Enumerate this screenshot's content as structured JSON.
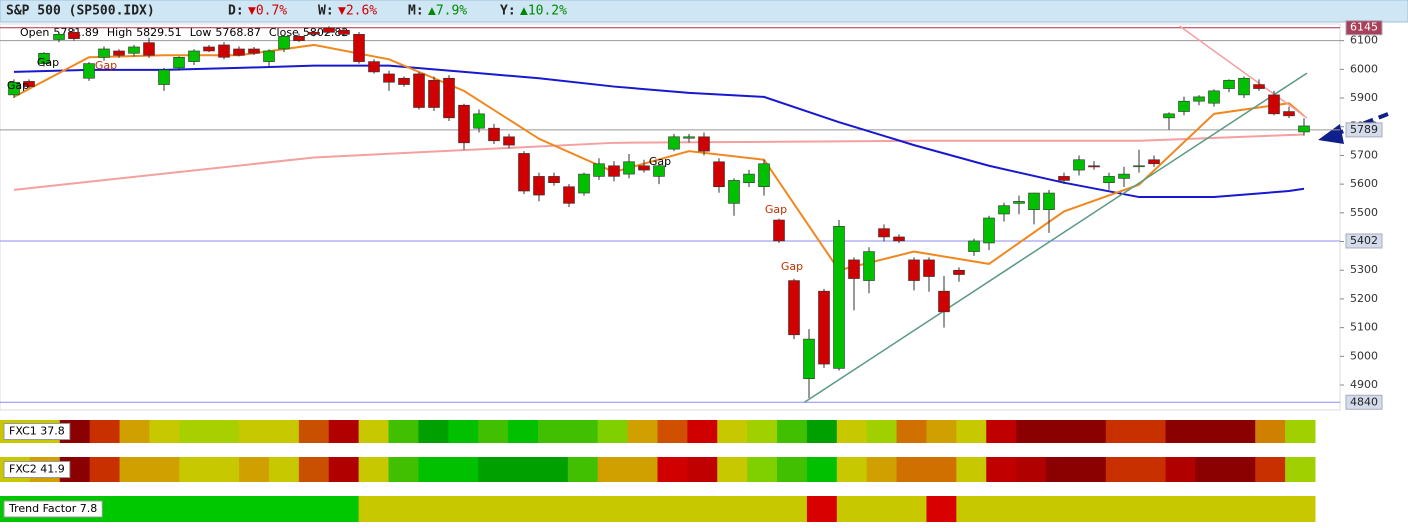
{
  "header": {
    "title": "S&P 500 (SP500.IDX)",
    "changes": [
      {
        "label": "D:",
        "value": "▼0.7%",
        "color": "#d00000"
      },
      {
        "label": "W:",
        "value": "▼2.6%",
        "color": "#d00000"
      },
      {
        "label": "M:",
        "value": "▲7.9%",
        "color": "#008800"
      },
      {
        "label": "Y:",
        "value": "▲10.2%",
        "color": "#008800"
      }
    ]
  },
  "chart_data": {
    "type": "candlestick",
    "ohlc_labels": [
      "Open",
      "High",
      "Low",
      "Close"
    ],
    "up_color": "#00c000",
    "down_color": "#d00000",
    "open": [
      5911,
      5958,
      6020,
      6104,
      6129,
      5969,
      6042,
      6064,
      6056,
      6093,
      5947,
      6005,
      6027,
      6078,
      6085,
      6071,
      6071,
      6027,
      6071,
      6115,
      6129,
      6144,
      6136,
      6122,
      6027,
      5984,
      5969,
      5984,
      5962,
      5969,
      5875,
      5795,
      5795,
      5765,
      5707,
      5627,
      5627,
      5591,
      5569,
      5627,
      5664,
      5635,
      5664,
      5627,
      5722,
      5760,
      5765,
      5678,
      5533,
      5605,
      5591,
      5475,
      5264,
      4922,
      5227,
      4958,
      5336,
      5264,
      5445,
      5416,
      5336,
      5336,
      5227,
      5300,
      5365,
      5395,
      5496,
      5533,
      5511,
      5511,
      5627,
      5649,
      5664,
      5605,
      5620,
      5661,
      5685,
      5831,
      5853,
      5889,
      5882,
      5933,
      5911,
      5947,
      5911,
      5853,
      5781.89
    ],
    "high": [
      5965,
      5965,
      6060,
      6130,
      6140,
      6025,
      6080,
      6070,
      6085,
      6110,
      6005,
      6045,
      6070,
      6085,
      6095,
      6080,
      6078,
      6070,
      6120,
      6125,
      6135,
      6150,
      6145,
      6130,
      6035,
      5995,
      5975,
      5990,
      5975,
      5980,
      5880,
      5860,
      5810,
      5775,
      5715,
      5640,
      5640,
      5600,
      5640,
      5690,
      5680,
      5705,
      5685,
      5670,
      5775,
      5775,
      5780,
      5690,
      5620,
      5650,
      5685,
      5480,
      5270,
      5095,
      5235,
      5475,
      5345,
      5380,
      5460,
      5425,
      5345,
      5345,
      5280,
      5310,
      5410,
      5490,
      5535,
      5560,
      5570,
      5580,
      5640,
      5700,
      5680,
      5640,
      5660,
      5720,
      5700,
      5850,
      5905,
      5910,
      5930,
      5965,
      5975,
      5965,
      5925,
      5870,
      5829.51
    ],
    "low": [
      5900,
      5935,
      6010,
      6095,
      6100,
      5960,
      6030,
      6040,
      6045,
      6040,
      5925,
      5995,
      6015,
      6060,
      6035,
      6045,
      6050,
      6010,
      6060,
      6095,
      6115,
      6125,
      6115,
      6020,
      5985,
      5925,
      5940,
      5860,
      5855,
      5820,
      5720,
      5780,
      5740,
      5725,
      5565,
      5540,
      5595,
      5520,
      5560,
      5615,
      5610,
      5620,
      5640,
      5600,
      5715,
      5745,
      5700,
      5570,
      5490,
      5590,
      5560,
      5395,
      5060,
      4855,
      4960,
      4950,
      5160,
      5220,
      5400,
      5395,
      5230,
      5225,
      5100,
      5260,
      5350,
      5370,
      5470,
      5495,
      5460,
      5430,
      5600,
      5630,
      5650,
      5580,
      5590,
      5640,
      5660,
      5790,
      5840,
      5875,
      5870,
      5920,
      5900,
      5925,
      5840,
      5830,
      5768.87
    ],
    "close": [
      5955,
      5940,
      6056,
      6122,
      6107,
      6020,
      6071,
      6049,
      6078,
      6049,
      5998,
      6042,
      6064,
      6064,
      6042,
      6049,
      6056,
      6064,
      6115,
      6100,
      6122,
      6129,
      6122,
      6027,
      5991,
      5955,
      5947,
      5867,
      5867,
      5831,
      5744,
      5845,
      5751,
      5736,
      5576,
      5562,
      5605,
      5533,
      5635,
      5671,
      5627,
      5678,
      5649,
      5664,
      5765,
      5765,
      5715,
      5591,
      5613,
      5635,
      5671,
      5402,
      5075,
      5060,
      4973,
      5453,
      5271,
      5365,
      5416,
      5402,
      5264,
      5278,
      5155,
      5285,
      5402,
      5482,
      5525,
      5540,
      5569,
      5569,
      5613,
      5685,
      5660,
      5627,
      5635,
      5664,
      5671,
      5845,
      5889,
      5904,
      5925,
      5962,
      5969,
      5933,
      5845,
      5838,
      5802.82
    ],
    "ylim": [
      4813,
      6158
    ],
    "yticks": [
      4900,
      5000,
      5100,
      5200,
      5300,
      5400,
      5500,
      5600,
      5700,
      5800,
      5900,
      6000,
      6100
    ],
    "lines": [
      {
        "color": "#f4a0a0",
        "x": [
          0,
          20,
          40,
          60,
          75,
          86
        ],
        "values": [
          5580,
          5693,
          5744,
          5751,
          5751,
          5773
        ]
      },
      {
        "color": "#1818d0",
        "x": [
          0,
          5,
          10,
          15,
          20,
          25,
          30,
          35,
          40,
          45,
          50,
          55,
          60,
          65,
          70,
          75,
          80,
          85,
          86
        ],
        "values": [
          5991,
          5998,
          5998,
          6005,
          6013,
          6013,
          5991,
          5969,
          5940,
          5918,
          5904,
          5816,
          5736,
          5664,
          5605,
          5555,
          5555,
          5576,
          5584
        ]
      },
      {
        "color": "#f08820",
        "x": [
          0,
          5,
          10,
          15,
          20,
          25,
          30,
          35,
          40,
          45,
          50,
          55,
          60,
          65,
          70,
          75,
          80,
          85,
          86
        ],
        "values": [
          5904,
          6042,
          6049,
          6049,
          6085,
          6035,
          5925,
          5758,
          5642,
          5715,
          5685,
          5300,
          5365,
          5322,
          5505,
          5598,
          5845,
          5882,
          5838
        ]
      }
    ],
    "trendlines": [
      {
        "color": "#5a9a80",
        "x": [
          52.7,
          86.2
        ],
        "values": [
          4840,
          5987
        ]
      },
      {
        "color": "#f4a0a0",
        "x": [
          77.7,
          86.2
        ],
        "values": [
          6151,
          5831
        ]
      }
    ],
    "levels": [
      {
        "value": 6145,
        "color": "#b03050",
        "box": "#a8405a",
        "text_color": "#ffffff",
        "labeled": true
      },
      {
        "value": 6100,
        "color": "#999999",
        "box": "#ffffff",
        "text_color": "#333333",
        "labeled": false
      },
      {
        "value": 5789,
        "color": "#999999",
        "box": "#d4dcec",
        "text_color": "#222222",
        "labeled": true
      },
      {
        "value": 5402,
        "color": "#8c8cf0",
        "box": "#d4dcec",
        "text_color": "#222222",
        "labeled": true
      },
      {
        "value": 4840,
        "color": "#8c8cf0",
        "box": "#d4dcec",
        "text_color": "#222222",
        "labeled": true
      }
    ],
    "annotations": [
      {
        "text": "Gap",
        "color": "#000000"
      },
      {
        "text": "Gap",
        "color": "#000000"
      },
      {
        "text": "Gap",
        "color": "#c03000"
      },
      {
        "text": "Gap",
        "color": "#000000"
      },
      {
        "text": "Gap",
        "color": "#c03000"
      },
      {
        "text": "Gap",
        "color": "#c03000"
      }
    ]
  },
  "indicators": [
    {
      "label": "FXC1 37.8",
      "colors": [
        "#c8c800",
        "#c8c800",
        "#8b0000",
        "#c83000",
        "#d0a000",
        "#c8c800",
        "#a8d000",
        "#a8d000",
        "#c8c800",
        "#c8c800",
        "#c85000",
        "#b00000",
        "#c8c800",
        "#40c000",
        "#00a000",
        "#00c000",
        "#40c000",
        "#00c000",
        "#40c000",
        "#40c000",
        "#80d000",
        "#d0a000",
        "#d05000",
        "#d00000",
        "#c8c800",
        "#a0d000",
        "#40c000",
        "#00a000",
        "#c8c800",
        "#a0d000",
        "#d07000",
        "#d0a000",
        "#c8c800",
        "#c00000",
        "#8b0000",
        "#8b0000",
        "#8b0000",
        "#c83000",
        "#c83000",
        "#8b0000",
        "#8b0000",
        "#8b0000",
        "#d08000",
        "#a0d000"
      ]
    },
    {
      "label": "FXC2 41.9",
      "colors": [
        "#c8c800",
        "#d0a000",
        "#8b0000",
        "#c83000",
        "#d0a000",
        "#d0a000",
        "#c8c800",
        "#c8c800",
        "#d0a000",
        "#c8c800",
        "#c85000",
        "#b00000",
        "#c8c800",
        "#40c000",
        "#00c000",
        "#00c000",
        "#00a000",
        "#00a000",
        "#00a000",
        "#40c000",
        "#d0a000",
        "#d0a000",
        "#d00000",
        "#c00000",
        "#c8c800",
        "#80d000",
        "#40c000",
        "#00c000",
        "#c8c800",
        "#d0a000",
        "#d07000",
        "#d07000",
        "#c8c800",
        "#c00000",
        "#b00000",
        "#8b0000",
        "#8b0000",
        "#c83000",
        "#c83000",
        "#b00000",
        "#8b0000",
        "#8b0000",
        "#c83000",
        "#a0d000"
      ]
    },
    {
      "label": "Trend Factor 7.8",
      "colors": [
        "#00c800",
        "#00c800",
        "#00c800",
        "#00c800",
        "#00c800",
        "#00c800",
        "#00c800",
        "#00c800",
        "#00c800",
        "#00c800",
        "#00c800",
        "#00c800",
        "#c8c800",
        "#c8c800",
        "#c8c800",
        "#c8c800",
        "#c8c800",
        "#c8c800",
        "#c8c800",
        "#c8c800",
        "#c8c800",
        "#c8c800",
        "#c8c800",
        "#c8c800",
        "#c8c800",
        "#c8c800",
        "#c8c800",
        "#d80000",
        "#c8c800",
        "#c8c800",
        "#c8c800",
        "#d80000",
        "#c8c800",
        "#c8c800",
        "#c8c800",
        "#c8c800",
        "#c8c800",
        "#c8c800",
        "#c8c800",
        "#c8c800",
        "#c8c800",
        "#c8c800",
        "#c8c800",
        "#c8c800"
      ]
    }
  ]
}
